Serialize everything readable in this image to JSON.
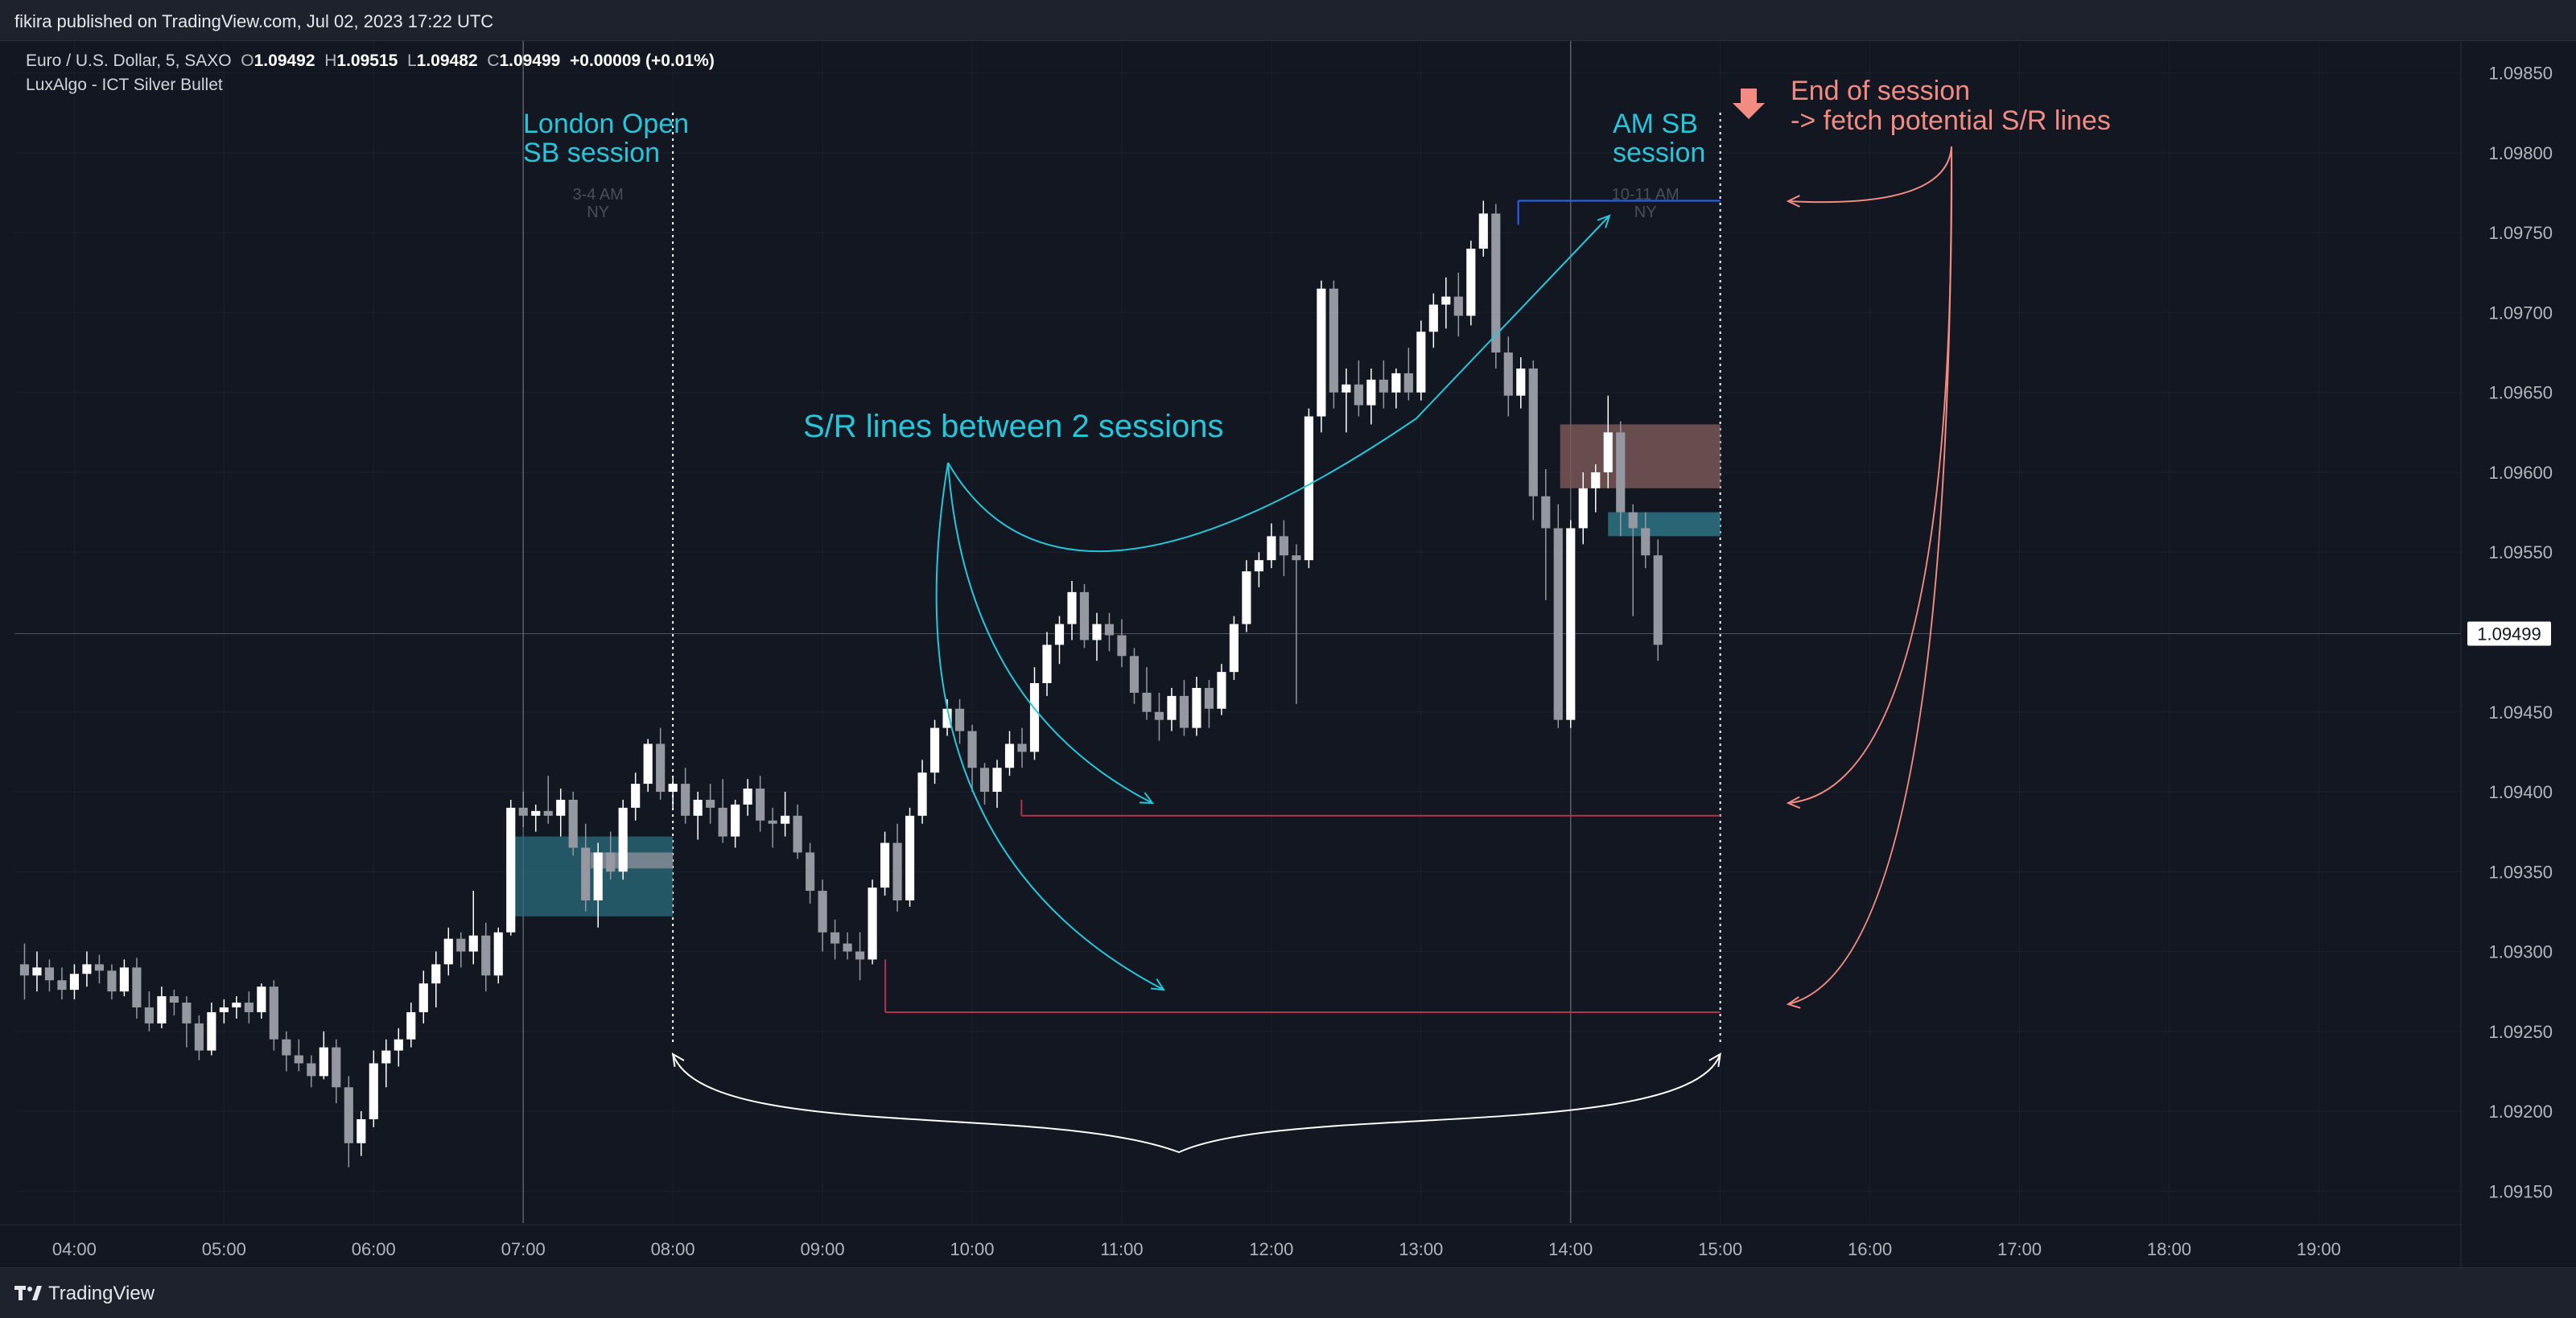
{
  "header": {
    "published_text": "fikira published on TradingView.com, Jul 02, 2023 17:22 UTC"
  },
  "symbol": {
    "name": "Euro / U.S. Dollar, 5, SAXO",
    "o_label": "O",
    "o_value": "1.09492",
    "h_label": "H",
    "h_value": "1.09515",
    "l_label": "L",
    "l_value": "1.09482",
    "c_label": "C",
    "c_value": "1.09499",
    "change": "+0.00009 (+0.01%)",
    "indicator": "LuxAlgo - ICT Silver Bullet"
  },
  "footer": {
    "brand": "TradingView"
  },
  "colors": {
    "background": "#131722",
    "bull": "#ffffff",
    "bear": "#9598a1",
    "cyan": "#26c6da",
    "salmon": "#f28b82",
    "red_line": "#b2334a",
    "blue_line": "#2962ff",
    "fvg_teal": "#2b6e7e",
    "fvg_brown": "#7e5a5a"
  },
  "chart_data": {
    "type": "candlestick",
    "x_ticks": [
      "04:00",
      "05:00",
      "06:00",
      "07:00",
      "08:00",
      "09:00",
      "10:00",
      "11:00",
      "12:00",
      "13:00",
      "14:00",
      "15:00",
      "16:00",
      "17:00",
      "18:00",
      "19:00"
    ],
    "y_ticks": [
      "1.09850",
      "1.09800",
      "1.09750",
      "1.09700",
      "1.09650",
      "1.09600",
      "1.09550",
      "1.09450",
      "1.09400",
      "1.09350",
      "1.09300",
      "1.09250",
      "1.09200",
      "1.09150"
    ],
    "ylim": [
      1.0913,
      1.0987
    ],
    "x_range_hours": [
      3.6,
      19.95
    ],
    "last_price": "1.09499",
    "candles_start_hour": 3.667,
    "candle_interval_minutes": 5,
    "ohlc": [
      [
        1.09292,
        1.09305,
        1.0927,
        1.09285
      ],
      [
        1.09285,
        1.093,
        1.09275,
        1.0929
      ],
      [
        1.0929,
        1.09295,
        1.09275,
        1.09282
      ],
      [
        1.09282,
        1.0929,
        1.0927,
        1.09276
      ],
      [
        1.09276,
        1.09292,
        1.0927,
        1.09286
      ],
      [
        1.09286,
        1.093,
        1.09278,
        1.09292
      ],
      [
        1.09292,
        1.09298,
        1.0928,
        1.09288
      ],
      [
        1.09288,
        1.09292,
        1.0927,
        1.09275
      ],
      [
        1.09275,
        1.09295,
        1.09272,
        1.0929
      ],
      [
        1.0929,
        1.09296,
        1.09258,
        1.09265
      ],
      [
        1.09265,
        1.09275,
        1.0925,
        1.09255
      ],
      [
        1.09255,
        1.09278,
        1.09252,
        1.09272
      ],
      [
        1.09272,
        1.09276,
        1.0926,
        1.09268
      ],
      [
        1.09268,
        1.09272,
        1.0924,
        1.09255
      ],
      [
        1.09255,
        1.0926,
        1.09232,
        1.09238
      ],
      [
        1.09238,
        1.09268,
        1.09235,
        1.09262
      ],
      [
        1.09262,
        1.0927,
        1.09255,
        1.09265
      ],
      [
        1.09265,
        1.09272,
        1.09258,
        1.09268
      ],
      [
        1.09268,
        1.09275,
        1.09255,
        1.09262
      ],
      [
        1.09262,
        1.0928,
        1.09258,
        1.09278
      ],
      [
        1.09278,
        1.09282,
        1.09238,
        1.09245
      ],
      [
        1.09245,
        1.0925,
        1.09225,
        1.09235
      ],
      [
        1.09235,
        1.09245,
        1.09225,
        1.0923
      ],
      [
        1.0923,
        1.09235,
        1.09215,
        1.09222
      ],
      [
        1.09222,
        1.0925,
        1.0922,
        1.0924
      ],
      [
        1.0924,
        1.09245,
        1.09205,
        1.09215
      ],
      [
        1.09215,
        1.09222,
        1.09165,
        1.0918
      ],
      [
        1.0918,
        1.092,
        1.09172,
        1.09195
      ],
      [
        1.09195,
        1.09238,
        1.0919,
        1.0923
      ],
      [
        1.0923,
        1.09245,
        1.09215,
        1.09238
      ],
      [
        1.09238,
        1.09252,
        1.09228,
        1.09245
      ],
      [
        1.09245,
        1.09268,
        1.0924,
        1.09262
      ],
      [
        1.09262,
        1.09288,
        1.09255,
        1.0928
      ],
      [
        1.0928,
        1.093,
        1.09265,
        1.09292
      ],
      [
        1.09292,
        1.09315,
        1.09285,
        1.09308
      ],
      [
        1.09308,
        1.09312,
        1.0929,
        1.093
      ],
      [
        1.093,
        1.09338,
        1.09292,
        1.0931
      ],
      [
        1.0931,
        1.09318,
        1.09275,
        1.09285
      ],
      [
        1.09285,
        1.09315,
        1.0928,
        1.09312
      ],
      [
        1.09312,
        1.09395,
        1.0931,
        1.0939
      ],
      [
        1.0939,
        1.094,
        1.09378,
        1.09385
      ],
      [
        1.09385,
        1.09392,
        1.09375,
        1.09388
      ],
      [
        1.09388,
        1.0941,
        1.0938,
        1.09385
      ],
      [
        1.09385,
        1.09402,
        1.09372,
        1.09395
      ],
      [
        1.09395,
        1.094,
        1.0936,
        1.09365
      ],
      [
        1.09365,
        1.0938,
        1.09325,
        1.09332
      ],
      [
        1.09332,
        1.09368,
        1.09315,
        1.09362
      ],
      [
        1.09362,
        1.09375,
        1.09345,
        1.0935
      ],
      [
        1.0935,
        1.09395,
        1.09345,
        1.0939
      ],
      [
        1.0939,
        1.09412,
        1.09382,
        1.09405
      ],
      [
        1.09405,
        1.09433,
        1.094,
        1.0943
      ],
      [
        1.0943,
        1.0944,
        1.09395,
        1.094
      ],
      [
        1.094,
        1.0941,
        1.0939,
        1.09405
      ],
      [
        1.09405,
        1.09415,
        1.0938,
        1.09385
      ],
      [
        1.09385,
        1.094,
        1.0937,
        1.09395
      ],
      [
        1.09395,
        1.09405,
        1.0938,
        1.0939
      ],
      [
        1.0939,
        1.09408,
        1.09368,
        1.09372
      ],
      [
        1.09372,
        1.09395,
        1.09365,
        1.09392
      ],
      [
        1.09392,
        1.09408,
        1.09385,
        1.09402
      ],
      [
        1.09402,
        1.0941,
        1.09375,
        1.09382
      ],
      [
        1.09382,
        1.0939,
        1.09365,
        1.0938
      ],
      [
        1.0938,
        1.094,
        1.09372,
        1.09385
      ],
      [
        1.09385,
        1.09392,
        1.09358,
        1.09362
      ],
      [
        1.09362,
        1.09368,
        1.0933,
        1.09338
      ],
      [
        1.09338,
        1.09345,
        1.093,
        1.09312
      ],
      [
        1.09312,
        1.0932,
        1.09295,
        1.09305
      ],
      [
        1.09305,
        1.09312,
        1.09295,
        1.093
      ],
      [
        1.093,
        1.09312,
        1.09282,
        1.09295
      ],
      [
        1.09295,
        1.09345,
        1.09292,
        1.0934
      ],
      [
        1.0934,
        1.09375,
        1.09335,
        1.09368
      ],
      [
        1.09368,
        1.0938,
        1.09325,
        1.09332
      ],
      [
        1.09332,
        1.0939,
        1.09328,
        1.09385
      ],
      [
        1.09385,
        1.0942,
        1.0938,
        1.09412
      ],
      [
        1.09412,
        1.09445,
        1.09405,
        1.0944
      ],
      [
        1.0944,
        1.09458,
        1.09435,
        1.09452
      ],
      [
        1.09452,
        1.09458,
        1.0943,
        1.09438
      ],
      [
        1.09438,
        1.09442,
        1.094,
        1.09415
      ],
      [
        1.09415,
        1.09418,
        1.09392,
        1.094
      ],
      [
        1.094,
        1.0942,
        1.0939,
        1.09415
      ],
      [
        1.09415,
        1.09438,
        1.0941,
        1.0943
      ],
      [
        1.0943,
        1.0944,
        1.09415,
        1.09425
      ],
      [
        1.09425,
        1.09478,
        1.0942,
        1.09468
      ],
      [
        1.09468,
        1.095,
        1.0946,
        1.09492
      ],
      [
        1.09492,
        1.0951,
        1.0948,
        1.09505
      ],
      [
        1.09505,
        1.09532,
        1.09495,
        1.09525
      ],
      [
        1.09525,
        1.0953,
        1.0949,
        1.09495
      ],
      [
        1.09495,
        1.09512,
        1.09482,
        1.09505
      ],
      [
        1.09505,
        1.09512,
        1.09488,
        1.09498
      ],
      [
        1.09498,
        1.09508,
        1.09478,
        1.09485
      ],
      [
        1.09485,
        1.0949,
        1.09455,
        1.09462
      ],
      [
        1.09462,
        1.09478,
        1.09445,
        1.0945
      ],
      [
        1.0945,
        1.09462,
        1.09432,
        1.09445
      ],
      [
        1.09445,
        1.09465,
        1.09438,
        1.0946
      ],
      [
        1.0946,
        1.0947,
        1.09435,
        1.0944
      ],
      [
        1.0944,
        1.09472,
        1.09435,
        1.09465
      ],
      [
        1.09465,
        1.0947,
        1.0944,
        1.09452
      ],
      [
        1.09452,
        1.0948,
        1.09448,
        1.09475
      ],
      [
        1.09475,
        1.0951,
        1.0947,
        1.09505
      ],
      [
        1.09505,
        1.09545,
        1.095,
        1.09538
      ],
      [
        1.09538,
        1.0955,
        1.09528,
        1.09545
      ],
      [
        1.09545,
        1.09568,
        1.0954,
        1.0956
      ],
      [
        1.0956,
        1.0957,
        1.09535,
        1.09548
      ],
      [
        1.09548,
        1.09555,
        1.09455,
        1.09545
      ],
      [
        1.09545,
        1.0964,
        1.0954,
        1.09635
      ],
      [
        1.09635,
        1.0972,
        1.09625,
        1.09715
      ],
      [
        1.09715,
        1.0972,
        1.0964,
        1.0965
      ],
      [
        1.0965,
        1.09665,
        1.09625,
        1.09655
      ],
      [
        1.09655,
        1.0967,
        1.09635,
        1.09642
      ],
      [
        1.09642,
        1.09665,
        1.0963,
        1.09658
      ],
      [
        1.09658,
        1.0967,
        1.0964,
        1.0965
      ],
      [
        1.0965,
        1.09665,
        1.0964,
        1.09662
      ],
      [
        1.09662,
        1.09678,
        1.09645,
        1.0965
      ],
      [
        1.0965,
        1.09695,
        1.09645,
        1.09688
      ],
      [
        1.09688,
        1.09712,
        1.09678,
        1.09705
      ],
      [
        1.09705,
        1.09722,
        1.0969,
        1.0971
      ],
      [
        1.0971,
        1.09725,
        1.09685,
        1.09698
      ],
      [
        1.09698,
        1.09745,
        1.09692,
        1.0974
      ],
      [
        1.0974,
        1.0977,
        1.09735,
        1.09762
      ],
      [
        1.09762,
        1.09768,
        1.09665,
        1.09675
      ],
      [
        1.09675,
        1.09685,
        1.09635,
        1.09648
      ],
      [
        1.09648,
        1.09672,
        1.0964,
        1.09665
      ],
      [
        1.09665,
        1.0967,
        1.0957,
        1.09585
      ],
      [
        1.09585,
        1.09602,
        1.0952,
        1.09565
      ],
      [
        1.09565,
        1.0958,
        1.0944,
        1.09445
      ],
      [
        1.09445,
        1.0957,
        1.0944,
        1.09565
      ],
      [
        1.09565,
        1.096,
        1.09555,
        1.0959
      ],
      [
        1.0959,
        1.09605,
        1.09575,
        1.096
      ],
      [
        1.096,
        1.09648,
        1.0959,
        1.09625
      ],
      [
        1.09625,
        1.09632,
        1.0956,
        1.09575
      ],
      [
        1.09575,
        1.0958,
        1.0951,
        1.09565
      ],
      [
        1.09565,
        1.09575,
        1.0954,
        1.09548
      ],
      [
        1.09548,
        1.09558,
        1.09482,
        1.09492
      ]
    ]
  },
  "annotations": {
    "london_open": [
      "London Open",
      "SB session"
    ],
    "london_time": [
      "3-4 AM",
      "NY"
    ],
    "am_sb": [
      "AM SB",
      "session"
    ],
    "am_time": [
      "10-11 AM",
      "NY"
    ],
    "end_of_session": [
      "End of session",
      "-> fetch potential S/R lines"
    ],
    "sr_lines": "S/R lines between 2 sessions"
  }
}
